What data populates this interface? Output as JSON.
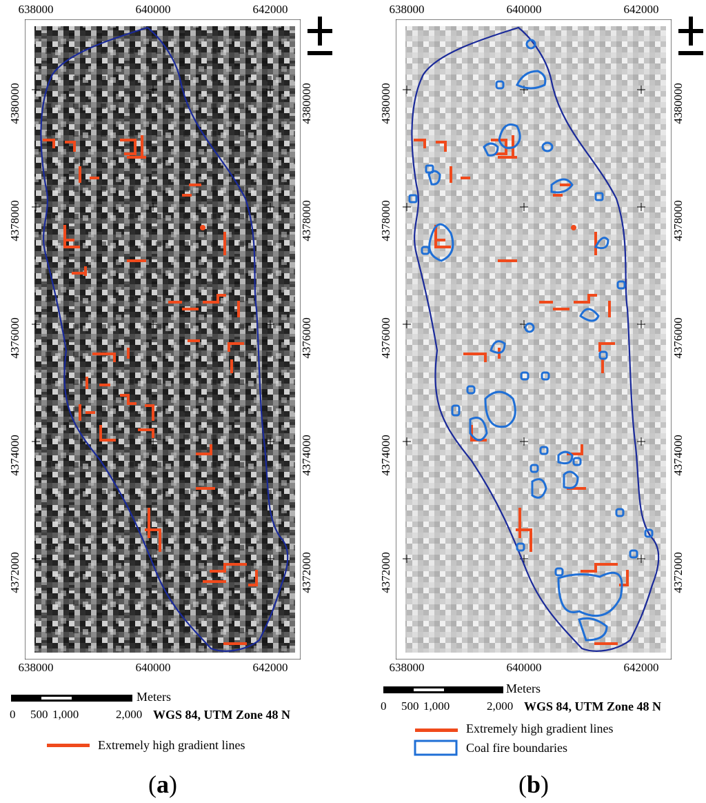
{
  "panels": [
    {
      "id": "a",
      "label_open": "(",
      "label_letter": "a",
      "label_close": ")",
      "x_ticks": [
        "638000",
        "640000",
        "642000"
      ],
      "x_ticks_bottom": [
        "638000",
        "640000",
        "642000"
      ],
      "y_ticks_left": [
        "4380000",
        "4378000",
        "4376000",
        "4374000",
        "4372000"
      ],
      "y_ticks_right": [
        "4380000",
        "4378000",
        "4376000",
        "4374000",
        "4372000"
      ],
      "scale": {
        "unit": "Meters",
        "labels": [
          "0",
          "500",
          "1,000",
          "2,000"
        ]
      },
      "crs": "WGS 84, UTM Zone 48 N",
      "legend": [
        {
          "label": "Extremely high gradient lines",
          "color": "#f04a1c",
          "kind": "line"
        }
      ]
    },
    {
      "id": "b",
      "label_open": "(",
      "label_letter": "b",
      "label_close": ")",
      "x_ticks": [
        "638000",
        "640000",
        "642000"
      ],
      "x_ticks_bottom": [
        "638000",
        "640000",
        "642000"
      ],
      "y_ticks_left": [
        "4380000",
        "4378000",
        "4376000",
        "4374000",
        "4372000"
      ],
      "y_ticks_right": [
        "4380000",
        "4378000",
        "4376000",
        "4374000",
        "4372000"
      ],
      "scale": {
        "unit": "Meters",
        "labels": [
          "0",
          "500",
          "1,000",
          "2,000"
        ]
      },
      "crs": "WGS 84, UTM Zone 48 N",
      "legend": [
        {
          "label": "Extremely high gradient lines",
          "color": "#f04a1c",
          "kind": "line"
        },
        {
          "label": "Coal fire boundaries",
          "color": "#1f6fd6",
          "kind": "box"
        }
      ]
    }
  ],
  "colors": {
    "boundary": "#1a2a9a",
    "gradient_lines": "#f04a1c",
    "coal_fire": "#1f6fd6"
  }
}
